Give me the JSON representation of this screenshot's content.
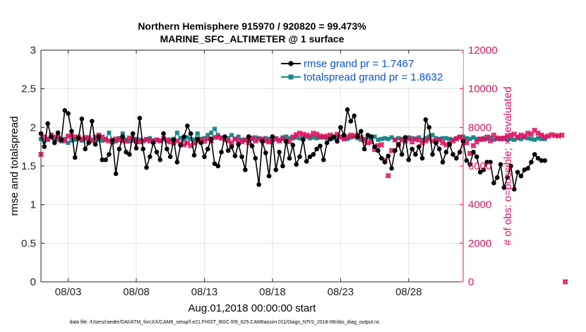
{
  "chart_data": {
    "type": "line",
    "title": [
      "Northern Hemisphere 915970 / 920820 = 99.473%",
      "MARINE_SFC_ALTIMETER @ 1 surface"
    ],
    "xlabel": "Aug.01,2018 00:00:00 start",
    "ylabel": "rmse and totalspread",
    "y2label": "# of obs: o=possible; ×=evaluated",
    "footnote": "data file: /Users/raeder/DAI/ATM_forcXX/CAM6_setup/f.e21.FHIST_BGC.f09_025.CAM6assim.011/Diags_NTrS_2018-08/obs_diag_output.nc",
    "x_unit": "day of Aug 2018 (fractional, 6-hourly)",
    "xlim": [
      1.0,
      32.0
    ],
    "ylim": [
      0,
      3
    ],
    "y2lim": [
      0,
      12000
    ],
    "x_ticks": [
      3,
      8,
      13,
      18,
      23,
      28
    ],
    "x_tick_labels": [
      "08/03",
      "08/08",
      "08/13",
      "08/18",
      "08/23",
      "08/28"
    ],
    "y_ticks": [
      0,
      0.5,
      1,
      1.5,
      2,
      2.5,
      3
    ],
    "y_tick_labels": [
      "0",
      "0.5",
      "1",
      "1.5",
      "2",
      "2.5",
      "3"
    ],
    "y2_ticks": [
      0,
      2000,
      4000,
      6000,
      8000,
      10000,
      12000
    ],
    "y2_tick_labels": [
      "0",
      "2000",
      "4000",
      "6000",
      "8000",
      "10000",
      "12000"
    ],
    "grid": true,
    "legend_position": "top-right",
    "x_start": 1.0,
    "x_step": 0.25,
    "colors": {
      "rmse": "#000000",
      "spread": "#1a8a8a",
      "obs": "#e0115f",
      "legend_text": "#0a52d0",
      "axis": "#262626",
      "grid": "#e3e3e3"
    },
    "series": [
      {
        "name": "rmse grand pr = 1.7467",
        "axis": "left",
        "values": [
          1.92,
          1.75,
          2.05,
          1.88,
          1.8,
          1.93,
          1.84,
          2.22,
          2.18,
          1.95,
          1.61,
          1.86,
          2.11,
          1.72,
          1.8,
          2.08,
          1.78,
          1.88,
          1.58,
          1.58,
          1.65,
          1.83,
          1.4,
          1.72,
          1.88,
          1.68,
          1.65,
          1.92,
          1.73,
          2.12,
          1.72,
          1.48,
          1.62,
          1.8,
          1.68,
          1.58,
          1.92,
          1.72,
          1.62,
          1.84,
          1.55,
          1.77,
          1.88,
          2.02,
          1.92,
          1.64,
          1.85,
          1.8,
          1.62,
          1.72,
          1.85,
          1.53,
          1.5,
          1.68,
          1.88,
          1.7,
          1.75,
          1.63,
          1.78,
          1.62,
          1.45,
          1.88,
          1.76,
          1.6,
          1.26,
          1.82,
          1.67,
          1.37,
          1.88,
          1.45,
          1.68,
          1.5,
          1.82,
          1.6,
          1.77,
          1.52,
          1.62,
          1.84,
          1.56,
          1.62,
          1.65,
          1.72,
          1.76,
          1.58,
          1.8,
          1.85,
          1.88,
          1.82,
          2.0,
          1.9,
          2.23,
          2.08,
          2.15,
          1.88,
          1.95,
          1.72,
          1.9,
          1.88,
          1.75,
          1.7,
          1.6,
          1.55,
          1.63,
          1.47,
          1.7,
          1.78,
          1.65,
          1.87,
          1.58,
          1.72,
          1.65,
          1.75,
          1.6,
          2.1,
          2.0,
          1.65,
          1.8,
          1.72,
          1.55,
          1.68,
          1.78,
          1.65,
          1.6,
          1.68,
          1.82,
          1.57,
          1.52,
          1.68,
          1.62,
          1.42,
          1.45,
          1.55,
          1.55,
          1.28,
          1.35,
          1.52,
          1.22,
          1.35,
          1.5,
          1.2,
          1.42,
          1.37,
          1.45,
          1.47,
          1.55,
          1.65,
          1.6,
          1.57,
          1.57
        ]
      },
      {
        "name": "totalspread grand pr = 1.8632",
        "axis": "left",
        "values": [
          1.85,
          1.82,
          1.84,
          1.87,
          1.83,
          1.84,
          1.82,
          1.85,
          1.8,
          1.83,
          1.84,
          1.87,
          1.83,
          1.85,
          1.81,
          1.84,
          1.86,
          1.84,
          1.83,
          1.85,
          1.93,
          1.84,
          1.82,
          1.86,
          1.92,
          1.84,
          1.82,
          1.83,
          1.85,
          1.84,
          1.83,
          1.84,
          1.86,
          1.83,
          1.84,
          1.83,
          1.85,
          1.82,
          1.84,
          1.85,
          1.93,
          1.86,
          1.84,
          1.87,
          1.85,
          1.84,
          1.92,
          1.85,
          1.86,
          1.9,
          1.93,
          1.98,
          1.9,
          1.86,
          1.87,
          1.86,
          1.9,
          1.85,
          1.88,
          1.84,
          1.83,
          1.86,
          1.85,
          1.87,
          1.86,
          1.84,
          1.86,
          1.85,
          1.85,
          1.86,
          1.84,
          1.87,
          1.88,
          1.86,
          1.86,
          1.87,
          1.86,
          1.87,
          1.88,
          1.86,
          1.87,
          1.86,
          1.87,
          1.88,
          1.86,
          1.85,
          1.86,
          1.87,
          1.88,
          1.86,
          1.85,
          1.87,
          1.88,
          1.86,
          1.84,
          1.85,
          1.87,
          1.86,
          1.88,
          1.84,
          1.85,
          1.86,
          1.85,
          1.87,
          1.84,
          1.86,
          1.85,
          1.84,
          1.87,
          1.86,
          1.85,
          1.87,
          1.84,
          1.86,
          1.88,
          1.9,
          1.86,
          1.85,
          1.86,
          1.86,
          1.85,
          1.84,
          1.86,
          1.87,
          1.88,
          1.86,
          1.85,
          1.87,
          1.85,
          1.84,
          1.86,
          1.85,
          1.87,
          1.84,
          1.85,
          1.86,
          1.85,
          1.84,
          1.85,
          1.84,
          1.86,
          1.85,
          1.87,
          1.86,
          1.85,
          1.84,
          1.86,
          1.85,
          1.85
        ]
      },
      {
        "name": "obs possible",
        "axis": "right",
        "values": [
          6600,
          7500,
          7400,
          7600,
          7500,
          7450,
          7350,
          7300,
          7550,
          7550,
          7500,
          7500,
          7400,
          7480,
          7450,
          7300,
          7500,
          7600,
          7500,
          7350,
          7300,
          7250,
          7400,
          7350,
          7300,
          7280,
          7450,
          7350,
          7300,
          7250,
          7300,
          7380,
          7300,
          7280,
          7350,
          7300,
          7420,
          7350,
          7250,
          7200,
          7300,
          7150,
          7100,
          7200,
          7050,
          7180,
          7300,
          7350,
          7280,
          7400,
          7300,
          7480,
          7500,
          7450,
          7380,
          7300,
          7200,
          7400,
          7300,
          7250,
          7350,
          7200,
          7450,
          7300,
          7380,
          7400,
          7300,
          7250,
          7350,
          7400,
          7300,
          7400,
          7300,
          7250,
          7500,
          7620,
          7700,
          7650,
          7600,
          7550,
          7700,
          7650,
          7550,
          7500,
          7550,
          7600,
          7500,
          7640,
          7500,
          7400,
          7500,
          7600,
          7550,
          7600,
          7480,
          7320,
          7200,
          7250,
          6850,
          7050,
          7100,
          6300,
          5500,
          6800,
          7350,
          7100,
          7350,
          7300,
          7400,
          7250,
          7400,
          7350,
          7200,
          7300,
          7400,
          7300,
          7300,
          7350,
          7200,
          7100,
          7150,
          7300,
          7400,
          7500,
          7350,
          7200,
          6650,
          7050,
          7250,
          7400,
          7380,
          7500,
          7300,
          7600,
          7450,
          7400,
          7450,
          7550,
          7600,
          7650,
          7500,
          7600,
          7550,
          7700,
          7650,
          7850,
          7700,
          7600,
          7500,
          7550,
          7620,
          7580,
          7560,
          7600,
          0
        ]
      },
      {
        "name": "obs evaluated",
        "axis": "right",
        "values": [
          6600,
          7500,
          7400,
          7600,
          7500,
          7450,
          7350,
          7300,
          7550,
          7550,
          7500,
          7500,
          7400,
          7480,
          7450,
          7300,
          7500,
          7600,
          7500,
          7350,
          7300,
          7250,
          7400,
          7350,
          7300,
          7280,
          7450,
          7350,
          7300,
          7250,
          7300,
          7380,
          7300,
          7280,
          7350,
          7300,
          7420,
          7350,
          7250,
          7200,
          7300,
          7150,
          7100,
          7200,
          7050,
          7180,
          7300,
          7350,
          7280,
          7400,
          7300,
          7480,
          7500,
          7450,
          7380,
          7300,
          7200,
          7400,
          7300,
          7250,
          7350,
          7200,
          7450,
          7300,
          7380,
          7400,
          7300,
          7250,
          7350,
          7400,
          7300,
          7400,
          7300,
          7250,
          7500,
          7620,
          7700,
          7650,
          7600,
          7550,
          7700,
          7650,
          7550,
          7500,
          7550,
          7600,
          7500,
          7640,
          7500,
          7400,
          7500,
          7600,
          7550,
          7600,
          7480,
          7320,
          7200,
          7250,
          6850,
          7050,
          7100,
          6300,
          5500,
          6800,
          7350,
          7100,
          7350,
          7300,
          7400,
          7250,
          7400,
          7350,
          7200,
          7300,
          7400,
          7300,
          7300,
          7350,
          7200,
          7100,
          7150,
          7300,
          7400,
          7500,
          7350,
          7200,
          6650,
          7050,
          7250,
          7400,
          7380,
          7500,
          7300,
          7600,
          7450,
          7400,
          7450,
          7550,
          7600,
          7650,
          7500,
          7600,
          7550,
          7700,
          7650,
          7850,
          7700,
          7600,
          7500,
          7550,
          7620,
          7580,
          7560,
          7600,
          0
        ]
      }
    ]
  }
}
